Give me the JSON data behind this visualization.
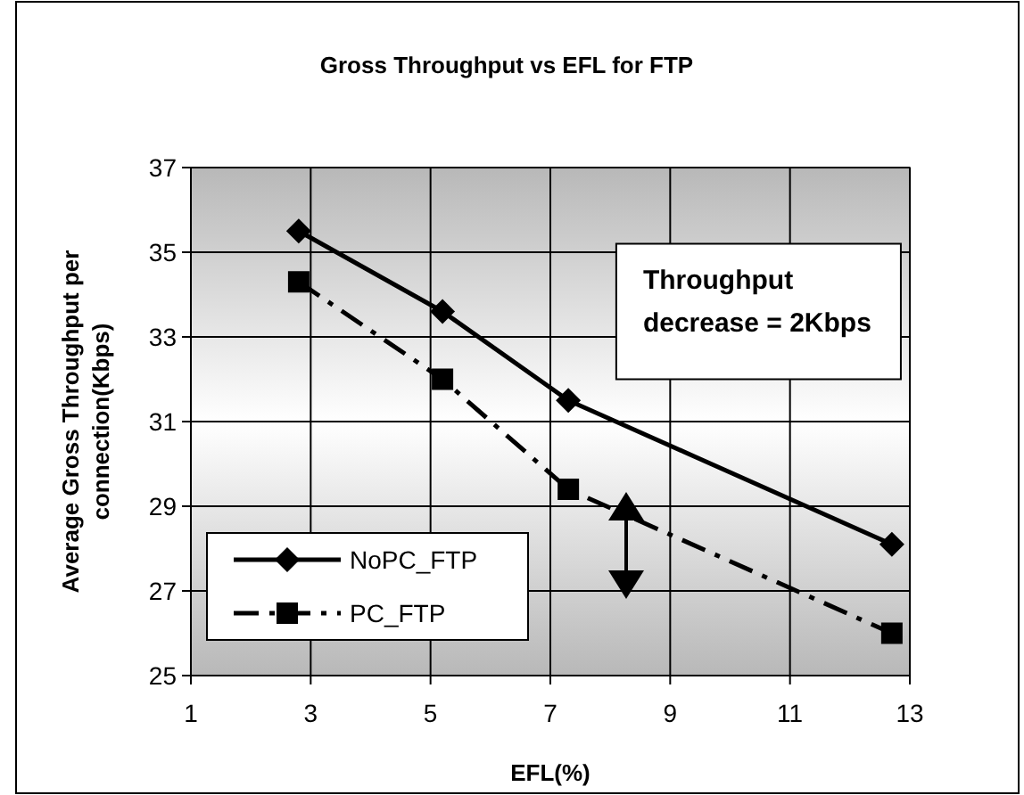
{
  "chart_data": {
    "type": "line",
    "title": "Gross Throughput vs EFL for FTP",
    "xlabel": "EFL(%)",
    "ylabel": "Average Gross Throughput per connection(Kbps)",
    "x": [
      2.8,
      5.2,
      7.3,
      12.7
    ],
    "series": [
      {
        "name": "NoPC_FTP",
        "color": "#000000",
        "values": [
          35.5,
          33.6,
          31.5,
          28.1
        ],
        "marker": "diamond",
        "line_style": "solid"
      },
      {
        "name": "PC_FTP",
        "color": "#000000",
        "values": [
          34.3,
          32.0,
          29.4,
          26.0
        ],
        "marker": "square",
        "line_style": "dashed"
      }
    ],
    "xlim": [
      1,
      13
    ],
    "xticks": [
      1,
      3,
      5,
      7,
      9,
      11,
      13
    ],
    "ylim": [
      25,
      37
    ],
    "yticks": [
      25,
      27,
      29,
      31,
      33,
      35,
      37
    ],
    "grid": true,
    "legend": "bottom left",
    "annotations": [
      "Throughput decrease = 2Kbps"
    ]
  }
}
